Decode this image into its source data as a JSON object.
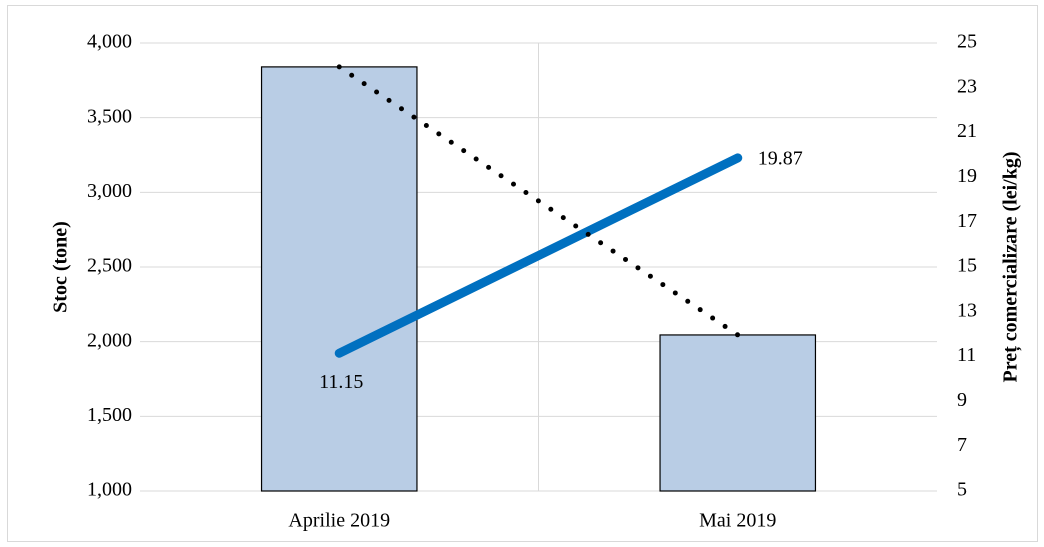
{
  "chart_data": {
    "type": "bar-line",
    "categories": [
      "Aprilie 2019",
      "Mai 2019"
    ],
    "ylabel": "Stoc (tone)",
    "y2label": "Preț comercializare (lei/kg)",
    "ylim": [
      1000,
      4000
    ],
    "yticks": [
      {
        "value": 1000,
        "label": "1,000"
      },
      {
        "value": 1500,
        "label": "1,500"
      },
      {
        "value": 2000,
        "label": "2,000"
      },
      {
        "value": 2500,
        "label": "2,500"
      },
      {
        "value": 3000,
        "label": "3,000"
      },
      {
        "value": 3500,
        "label": "3,500"
      },
      {
        "value": 4000,
        "label": "4,000"
      }
    ],
    "y2lim": [
      5,
      25
    ],
    "y2ticks": [
      5,
      7,
      9,
      11,
      13,
      15,
      17,
      19,
      21,
      23,
      25
    ],
    "grid": true,
    "series": [
      {
        "type": "bar",
        "color": "#b9cde5",
        "values": [
          3840,
          2045
        ]
      },
      {
        "type": "line",
        "axis": "y2",
        "color": "#0070c0",
        "values": [
          11.15,
          19.87
        ],
        "data_labels": true
      },
      {
        "type": "line",
        "style": "dotted",
        "color": "#000000",
        "values": [
          3840,
          2045
        ]
      }
    ]
  }
}
